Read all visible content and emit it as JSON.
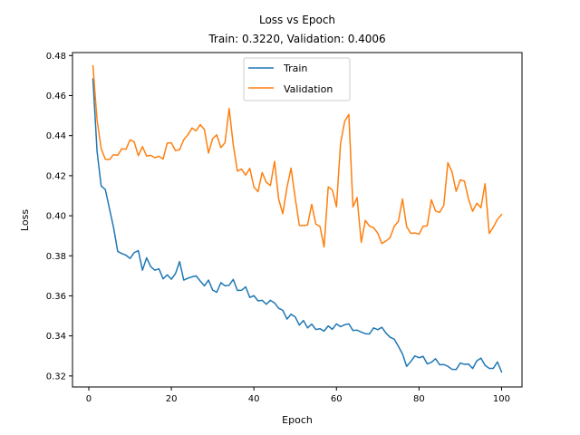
{
  "chart_data": {
    "type": "line",
    "title": "Loss vs Epoch",
    "subtitle": "Train: 0.3220, Validation: 0.4006",
    "xlabel": "Epoch",
    "ylabel": "Loss",
    "xlim": [
      -3.95,
      104.95
    ],
    "ylim": [
      0.3145,
      0.4815
    ],
    "xticks": [
      0,
      20,
      40,
      60,
      80,
      100
    ],
    "yticks": [
      0.32,
      0.34,
      0.36,
      0.38,
      0.4,
      0.42,
      0.44,
      0.46,
      0.48
    ],
    "ytick_labels": [
      "0.32",
      "0.34",
      "0.36",
      "0.38",
      "0.40",
      "0.42",
      "0.44",
      "0.46",
      "0.48"
    ],
    "grid": false,
    "legend_position": "top-center",
    "x": [
      1,
      2,
      3,
      4,
      5,
      6,
      7,
      8,
      9,
      10,
      11,
      12,
      13,
      14,
      15,
      16,
      17,
      18,
      19,
      20,
      21,
      22,
      23,
      24,
      25,
      26,
      27,
      28,
      29,
      30,
      31,
      32,
      33,
      34,
      35,
      36,
      37,
      38,
      39,
      40,
      41,
      42,
      43,
      44,
      45,
      46,
      47,
      48,
      49,
      50,
      51,
      52,
      53,
      54,
      55,
      56,
      57,
      58,
      59,
      60,
      61,
      62,
      63,
      64,
      65,
      66,
      67,
      68,
      69,
      70,
      71,
      72,
      73,
      74,
      75,
      76,
      77,
      78,
      79,
      80,
      81,
      82,
      83,
      84,
      85,
      86,
      87,
      88,
      89,
      90,
      91,
      92,
      93,
      94,
      95,
      96,
      97,
      98,
      99,
      100
    ],
    "series": [
      {
        "name": "Train",
        "color": "#1f77b4",
        "values": [
          0.4683,
          0.4322,
          0.4149,
          0.4131,
          0.4036,
          0.3941,
          0.3822,
          0.3811,
          0.3803,
          0.3787,
          0.3816,
          0.3826,
          0.3728,
          0.379,
          0.3746,
          0.3728,
          0.3735,
          0.3685,
          0.3705,
          0.3683,
          0.3711,
          0.3771,
          0.3679,
          0.3688,
          0.3695,
          0.37,
          0.3674,
          0.365,
          0.3679,
          0.3629,
          0.3618,
          0.3666,
          0.365,
          0.3653,
          0.3682,
          0.3627,
          0.3628,
          0.3645,
          0.3592,
          0.3601,
          0.3575,
          0.3578,
          0.3558,
          0.3578,
          0.3565,
          0.3538,
          0.3528,
          0.3484,
          0.3508,
          0.3495,
          0.3454,
          0.3477,
          0.344,
          0.3459,
          0.3432,
          0.3436,
          0.3424,
          0.345,
          0.3433,
          0.346,
          0.3446,
          0.3456,
          0.346,
          0.3427,
          0.3429,
          0.3419,
          0.3411,
          0.341,
          0.344,
          0.3431,
          0.3443,
          0.3414,
          0.3393,
          0.3384,
          0.3348,
          0.331,
          0.3248,
          0.3272,
          0.33,
          0.3291,
          0.3298,
          0.326,
          0.3268,
          0.3286,
          0.3256,
          0.3257,
          0.3248,
          0.3233,
          0.3232,
          0.3265,
          0.3258,
          0.3259,
          0.3237,
          0.3275,
          0.3289,
          0.3253,
          0.3238,
          0.3238,
          0.327,
          0.322
        ]
      },
      {
        "name": "Validation",
        "color": "#ff7f0e",
        "values": [
          0.4749,
          0.4478,
          0.4336,
          0.4282,
          0.4281,
          0.4305,
          0.4302,
          0.4335,
          0.4332,
          0.4379,
          0.4369,
          0.43,
          0.4345,
          0.4298,
          0.4302,
          0.429,
          0.4297,
          0.4283,
          0.4363,
          0.4364,
          0.4325,
          0.433,
          0.438,
          0.4404,
          0.4438,
          0.4424,
          0.4455,
          0.4431,
          0.4313,
          0.4385,
          0.4404,
          0.434,
          0.4365,
          0.4536,
          0.4354,
          0.4223,
          0.4233,
          0.4203,
          0.4237,
          0.4144,
          0.412,
          0.4216,
          0.4167,
          0.4151,
          0.4272,
          0.4083,
          0.401,
          0.414,
          0.4238,
          0.409,
          0.3952,
          0.3951,
          0.3954,
          0.4057,
          0.3958,
          0.3947,
          0.3844,
          0.4144,
          0.4129,
          0.4045,
          0.4363,
          0.4472,
          0.4506,
          0.4044,
          0.4091,
          0.3867,
          0.3977,
          0.3948,
          0.3941,
          0.3913,
          0.3861,
          0.3874,
          0.3891,
          0.3947,
          0.3972,
          0.4084,
          0.3946,
          0.3912,
          0.3914,
          0.3908,
          0.3948,
          0.395,
          0.408,
          0.4024,
          0.4017,
          0.4052,
          0.4265,
          0.4219,
          0.4122,
          0.4179,
          0.4173,
          0.4082,
          0.4022,
          0.4063,
          0.404,
          0.416,
          0.3912,
          0.3943,
          0.3982,
          0.4006
        ]
      }
    ]
  }
}
